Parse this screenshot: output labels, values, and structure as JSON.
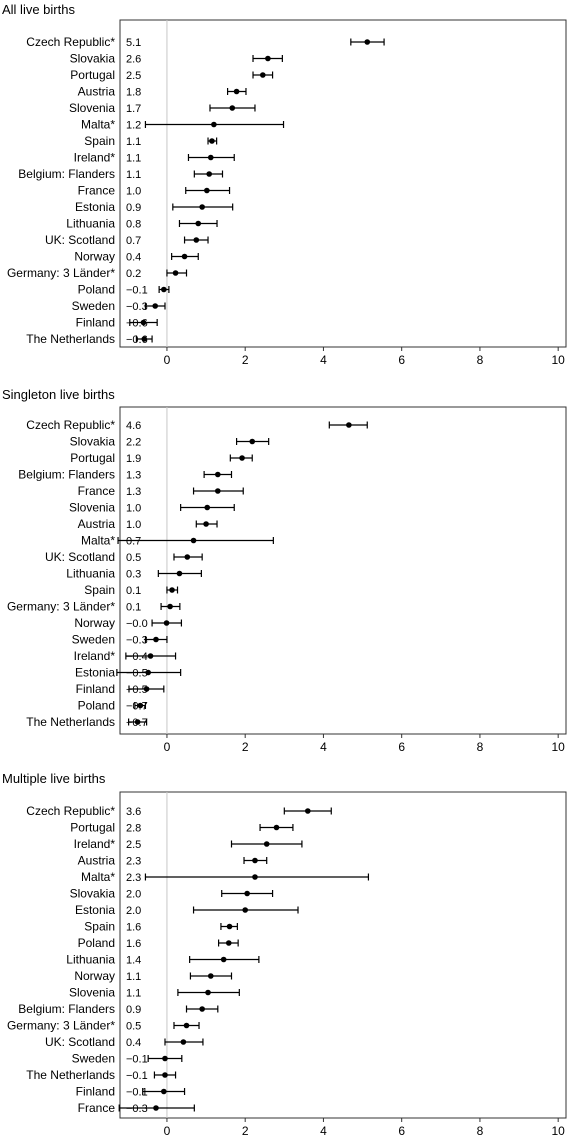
{
  "chart_data": [
    {
      "type": "forest",
      "title": "All live births",
      "xlim": [
        -1.2,
        10.2
      ],
      "xticks": [
        0,
        2,
        4,
        6,
        8,
        10
      ],
      "rows": [
        {
          "label": "Czech Republic*",
          "value_text": "5.1",
          "est": 5.12,
          "lo": 4.7,
          "hi": 5.55
        },
        {
          "label": "Slovakia",
          "value_text": "2.6",
          "est": 2.58,
          "lo": 2.2,
          "hi": 2.95
        },
        {
          "label": "Portugal",
          "value_text": "2.5",
          "est": 2.45,
          "lo": 2.2,
          "hi": 2.7
        },
        {
          "label": "Austria",
          "value_text": "1.8",
          "est": 1.78,
          "lo": 1.55,
          "hi": 2.02
        },
        {
          "label": "Slovenia",
          "value_text": "1.7",
          "est": 1.67,
          "lo": 1.1,
          "hi": 2.25
        },
        {
          "label": "Malta*",
          "value_text": "1.2",
          "est": 1.2,
          "lo": -0.55,
          "hi": 2.98
        },
        {
          "label": "Spain",
          "value_text": "1.1",
          "est": 1.15,
          "lo": 1.05,
          "hi": 1.27
        },
        {
          "label": "Ireland*",
          "value_text": "1.1",
          "est": 1.12,
          "lo": 0.55,
          "hi": 1.72
        },
        {
          "label": "Belgium: Flanders",
          "value_text": "1.1",
          "est": 1.08,
          "lo": 0.7,
          "hi": 1.42
        },
        {
          "label": "France",
          "value_text": "1.0",
          "est": 1.02,
          "lo": 0.48,
          "hi": 1.6
        },
        {
          "label": "Estonia",
          "value_text": "0.9",
          "est": 0.9,
          "lo": 0.15,
          "hi": 1.68
        },
        {
          "label": "Lithuania",
          "value_text": "0.8",
          "est": 0.8,
          "lo": 0.32,
          "hi": 1.28
        },
        {
          "label": "UK: Scotland",
          "value_text": "0.7",
          "est": 0.75,
          "lo": 0.45,
          "hi": 1.05
        },
        {
          "label": "Norway",
          "value_text": "0.4",
          "est": 0.45,
          "lo": 0.12,
          "hi": 0.8
        },
        {
          "label": "Germany: 3 Länder*",
          "value_text": "0.2",
          "est": 0.22,
          "lo": 0.0,
          "hi": 0.5
        },
        {
          "label": "Poland",
          "value_text": "−0.1",
          "est": -0.08,
          "lo": -0.2,
          "hi": 0.05
        },
        {
          "label": "Sweden",
          "value_text": "−0.3",
          "est": -0.3,
          "lo": -0.55,
          "hi": -0.05
        },
        {
          "label": "Finland",
          "value_text": "−0.6",
          "est": -0.6,
          "lo": -0.95,
          "hi": -0.25
        },
        {
          "label": "The Netherlands",
          "value_text": "−0.6",
          "est": -0.58,
          "lo": -0.78,
          "hi": -0.38
        }
      ]
    },
    {
      "type": "forest",
      "title": "Singleton live births",
      "xlim": [
        -1.2,
        10.2
      ],
      "xticks": [
        0,
        2,
        4,
        6,
        8,
        10
      ],
      "rows": [
        {
          "label": "Czech Republic*",
          "value_text": "4.6",
          "est": 4.65,
          "lo": 4.15,
          "hi": 5.12
        },
        {
          "label": "Slovakia",
          "value_text": "2.2",
          "est": 2.18,
          "lo": 1.78,
          "hi": 2.6
        },
        {
          "label": "Portugal",
          "value_text": "1.9",
          "est": 1.92,
          "lo": 1.62,
          "hi": 2.18
        },
        {
          "label": "Belgium: Flanders",
          "value_text": "1.3",
          "est": 1.3,
          "lo": 0.95,
          "hi": 1.65
        },
        {
          "label": "France",
          "value_text": "1.3",
          "est": 1.3,
          "lo": 0.68,
          "hi": 1.95
        },
        {
          "label": "Slovenia",
          "value_text": "1.0",
          "est": 1.03,
          "lo": 0.35,
          "hi": 1.72
        },
        {
          "label": "Austria",
          "value_text": "1.0",
          "est": 1.0,
          "lo": 0.75,
          "hi": 1.28
        },
        {
          "label": "Malta*",
          "value_text": "0.7",
          "est": 0.68,
          "lo": -1.25,
          "hi": 2.72
        },
        {
          "label": "UK: Scotland",
          "value_text": "0.5",
          "est": 0.52,
          "lo": 0.18,
          "hi": 0.9
        },
        {
          "label": "Lithuania",
          "value_text": "0.3",
          "est": 0.32,
          "lo": -0.22,
          "hi": 0.88
        },
        {
          "label": "Spain",
          "value_text": "0.1",
          "est": 0.13,
          "lo": 0.0,
          "hi": 0.27
        },
        {
          "label": "Germany: 3 Länder*",
          "value_text": "0.1",
          "est": 0.08,
          "lo": -0.15,
          "hi": 0.33
        },
        {
          "label": "Norway",
          "value_text": "−0.0",
          "est": -0.01,
          "lo": -0.38,
          "hi": 0.37
        },
        {
          "label": "Sweden",
          "value_text": "−0.3",
          "est": -0.28,
          "lo": -0.55,
          "hi": 0.0
        },
        {
          "label": "Ireland*",
          "value_text": "−0.4",
          "est": -0.42,
          "lo": -1.05,
          "hi": 0.22
        },
        {
          "label": "Estonia",
          "value_text": "−0.5",
          "est": -0.48,
          "lo": -1.28,
          "hi": 0.35
        },
        {
          "label": "Finland",
          "value_text": "−0.5",
          "est": -0.52,
          "lo": -0.97,
          "hi": -0.08
        },
        {
          "label": "Poland",
          "value_text": "−0.7",
          "est": -0.68,
          "lo": -0.82,
          "hi": -0.55
        },
        {
          "label": "The Netherlands",
          "value_text": "−0.7",
          "est": -0.75,
          "lo": -0.98,
          "hi": -0.52
        }
      ]
    },
    {
      "type": "forest",
      "title": "Multiple live births",
      "xlim": [
        -1.2,
        10.2
      ],
      "xticks": [
        0,
        2,
        4,
        6,
        8,
        10
      ],
      "rows": [
        {
          "label": "Czech Republic*",
          "value_text": "3.6",
          "est": 3.6,
          "lo": 3.0,
          "hi": 4.2
        },
        {
          "label": "Portugal",
          "value_text": "2.8",
          "est": 2.8,
          "lo": 2.38,
          "hi": 3.22
        },
        {
          "label": "Ireland*",
          "value_text": "2.5",
          "est": 2.55,
          "lo": 1.65,
          "hi": 3.45
        },
        {
          "label": "Austria",
          "value_text": "2.3",
          "est": 2.25,
          "lo": 1.97,
          "hi": 2.55
        },
        {
          "label": "Malta*",
          "value_text": "2.3",
          "est": 2.25,
          "lo": -0.55,
          "hi": 5.15
        },
        {
          "label": "Slovakia",
          "value_text": "2.0",
          "est": 2.05,
          "lo": 1.4,
          "hi": 2.7
        },
        {
          "label": "Estonia",
          "value_text": "2.0",
          "est": 2.0,
          "lo": 0.68,
          "hi": 3.35
        },
        {
          "label": "Spain",
          "value_text": "1.6",
          "est": 1.6,
          "lo": 1.38,
          "hi": 1.8
        },
        {
          "label": "Poland",
          "value_text": "1.6",
          "est": 1.58,
          "lo": 1.32,
          "hi": 1.82
        },
        {
          "label": "Lithuania",
          "value_text": "1.4",
          "est": 1.45,
          "lo": 0.58,
          "hi": 2.35
        },
        {
          "label": "Norway",
          "value_text": "1.1",
          "est": 1.12,
          "lo": 0.6,
          "hi": 1.65
        },
        {
          "label": "Slovenia",
          "value_text": "1.1",
          "est": 1.05,
          "lo": 0.28,
          "hi": 1.85
        },
        {
          "label": "Belgium: Flanders",
          "value_text": "0.9",
          "est": 0.9,
          "lo": 0.5,
          "hi": 1.3
        },
        {
          "label": "Germany: 3 Länder*",
          "value_text": "0.5",
          "est": 0.5,
          "lo": 0.18,
          "hi": 0.82
        },
        {
          "label": "UK: Scotland",
          "value_text": "0.4",
          "est": 0.42,
          "lo": -0.05,
          "hi": 0.92
        },
        {
          "label": "Sweden",
          "value_text": "−0.1",
          "est": -0.05,
          "lo": -0.48,
          "hi": 0.38
        },
        {
          "label": "The Netherlands",
          "value_text": "−0.1",
          "est": -0.05,
          "lo": -0.32,
          "hi": 0.22
        },
        {
          "label": "Finland",
          "value_text": "−0.1",
          "est": -0.08,
          "lo": -0.62,
          "hi": 0.45
        },
        {
          "label": "France",
          "value_text": "−0.3",
          "est": -0.28,
          "lo": -1.22,
          "hi": 0.7
        }
      ]
    }
  ]
}
